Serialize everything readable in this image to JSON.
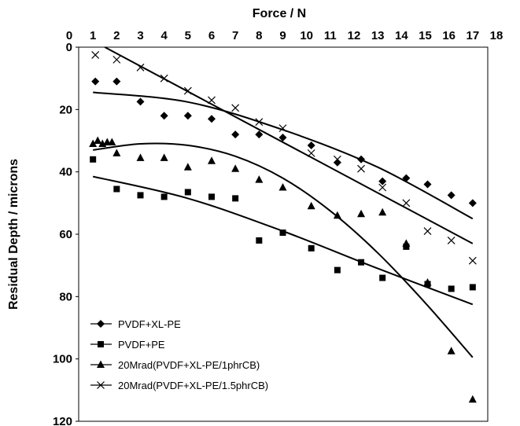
{
  "chart_data": {
    "type": "scatter",
    "title": "",
    "xlabel": "Force / N",
    "ylabel": "Residual Depth / microns",
    "x_axis_position": "top",
    "y_axis_inverted": true,
    "xlim": [
      0,
      18
    ],
    "ylim": [
      0,
      120
    ],
    "x_ticks": [
      "0",
      "1",
      "2",
      "3",
      "4",
      "5",
      "6",
      "7",
      "8",
      "9",
      "10",
      "11",
      "12",
      "13",
      "14",
      "15",
      "16",
      "17",
      "18"
    ],
    "y_ticks": [
      "0",
      "20",
      "40",
      "60",
      "80",
      "100",
      "120"
    ],
    "grid": false,
    "legend_position": "bottom-left",
    "series": [
      {
        "name": "PVDF+XL-PE",
        "marker": "diamond",
        "points": [
          [
            1.1,
            11
          ],
          [
            2.0,
            11
          ],
          [
            3.0,
            17.5
          ],
          [
            4.0,
            22
          ],
          [
            5.0,
            22
          ],
          [
            6.0,
            23
          ],
          [
            7.0,
            28
          ],
          [
            8.0,
            28
          ],
          [
            9.0,
            29
          ],
          [
            10.2,
            31.5
          ],
          [
            11.3,
            37
          ],
          [
            12.3,
            36
          ],
          [
            13.2,
            43
          ],
          [
            14.2,
            42
          ],
          [
            15.1,
            44
          ],
          [
            16.1,
            47.5
          ],
          [
            17.0,
            50
          ]
        ],
        "trend": [
          [
            1.0,
            14.5
          ],
          [
            5.0,
            17.6
          ],
          [
            9.0,
            26.5
          ],
          [
            13.0,
            38.5
          ],
          [
            17.0,
            55.0
          ]
        ]
      },
      {
        "name": "PVDF+PE",
        "marker": "square",
        "points": [
          [
            1.0,
            36
          ],
          [
            2.0,
            45.5
          ],
          [
            3.0,
            47.5
          ],
          [
            4.0,
            48
          ],
          [
            5.0,
            46.5
          ],
          [
            6.0,
            48
          ],
          [
            7.0,
            48.5
          ],
          [
            8.0,
            62
          ],
          [
            9.0,
            59.5
          ],
          [
            10.2,
            64.5
          ],
          [
            11.3,
            71.5
          ],
          [
            12.3,
            69
          ],
          [
            13.2,
            74
          ],
          [
            14.2,
            64
          ],
          [
            15.1,
            76
          ],
          [
            16.1,
            77.5
          ],
          [
            17.0,
            77
          ]
        ],
        "trend": [
          [
            1.0,
            41.5
          ],
          [
            5.0,
            48.5
          ],
          [
            9.0,
            59.0
          ],
          [
            13.0,
            71.0
          ],
          [
            17.0,
            82.5
          ]
        ]
      },
      {
        "name": "20Mrad(PVDF+XL-PE/1phrCB)",
        "marker": "triangle",
        "points": [
          [
            1.0,
            31
          ],
          [
            1.2,
            30
          ],
          [
            1.4,
            31
          ],
          [
            1.6,
            30.5
          ],
          [
            1.8,
            30.5
          ],
          [
            2.0,
            34
          ],
          [
            3.0,
            35.5
          ],
          [
            4.0,
            35.5
          ],
          [
            5.0,
            38.5
          ],
          [
            6.0,
            36.5
          ],
          [
            7.0,
            39
          ],
          [
            8.0,
            42.5
          ],
          [
            9.0,
            45
          ],
          [
            10.2,
            51
          ],
          [
            11.3,
            54
          ],
          [
            12.3,
            53.5
          ],
          [
            13.2,
            53
          ],
          [
            14.2,
            63
          ],
          [
            15.1,
            75.5
          ],
          [
            16.1,
            97.5
          ],
          [
            17.0,
            113
          ]
        ],
        "trend": [
          [
            1.0,
            33.0
          ],
          [
            3.0,
            31.0
          ],
          [
            5.0,
            31.5
          ],
          [
            7.0,
            35.0
          ],
          [
            9.0,
            42.0
          ],
          [
            11.0,
            52.5
          ],
          [
            13.0,
            66.0
          ],
          [
            15.0,
            82.0
          ],
          [
            17.0,
            99.5
          ]
        ]
      },
      {
        "name": "20Mrad(PVDF+XL-PE/1.5phrCB)",
        "marker": "cross",
        "points": [
          [
            1.1,
            2.5
          ],
          [
            2.0,
            4
          ],
          [
            3.0,
            6.5
          ],
          [
            4.0,
            10
          ],
          [
            5.0,
            14
          ],
          [
            6.0,
            17
          ],
          [
            7.0,
            19.5
          ],
          [
            8.0,
            24
          ],
          [
            9.0,
            26
          ],
          [
            10.2,
            34
          ],
          [
            11.3,
            36
          ],
          [
            12.3,
            39
          ],
          [
            13.2,
            45
          ],
          [
            14.2,
            50
          ],
          [
            15.1,
            59
          ],
          [
            16.1,
            62
          ],
          [
            17.0,
            68.5
          ]
        ],
        "trend": [
          [
            1.5,
            0.0
          ],
          [
            17.0,
            63.0
          ]
        ]
      }
    ]
  }
}
